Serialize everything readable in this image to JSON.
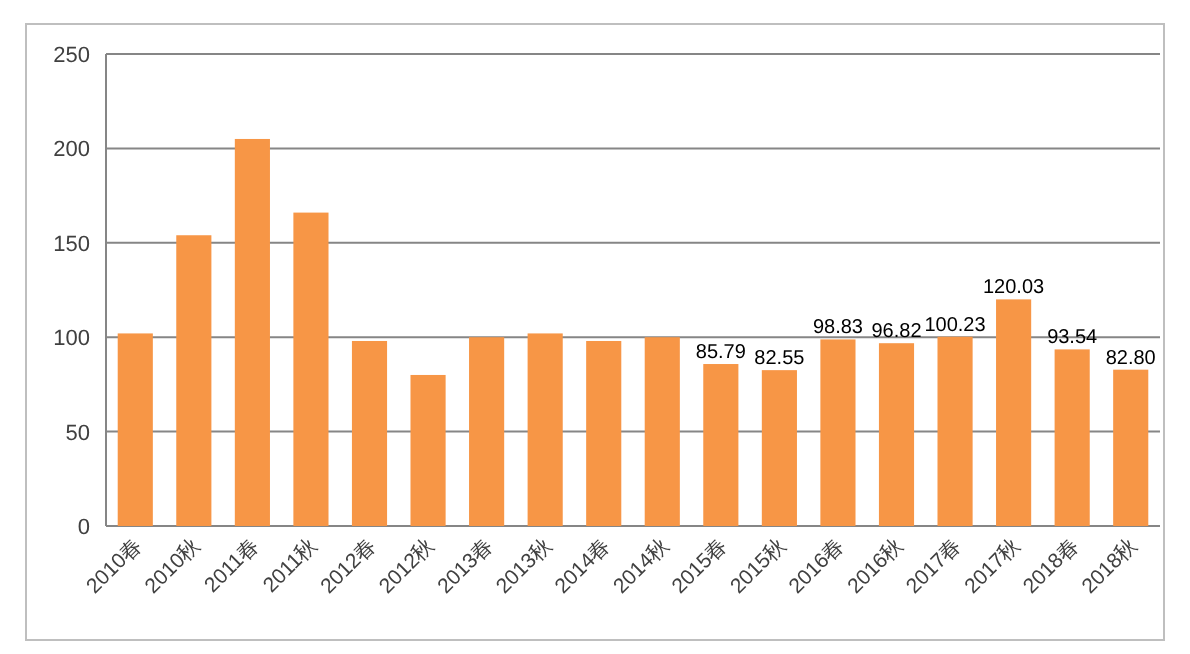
{
  "chart_data": {
    "type": "bar",
    "categories": [
      "2010春",
      "2010秋",
      "2011春",
      "2011秋",
      "2012春",
      "2012秋",
      "2013春",
      "2013秋",
      "2014春",
      "2014秋",
      "2015春",
      "2015秋",
      "2016春",
      "2016秋",
      "2017春",
      "2017秋",
      "2018春",
      "2018秋"
    ],
    "values": [
      102,
      154,
      205,
      166,
      98,
      80,
      100,
      102,
      98,
      100,
      85.79,
      82.55,
      98.83,
      96.82,
      100.23,
      120.03,
      93.54,
      82.8
    ],
    "value_labels": [
      null,
      null,
      null,
      null,
      null,
      null,
      null,
      null,
      null,
      null,
      "85.79",
      "82.55",
      "98.83",
      "96.82",
      "100.23",
      "120.03",
      "93.54",
      "82.80"
    ],
    "color": "#f79646",
    "ylim": [
      0,
      250
    ],
    "yticks": [
      0,
      50,
      100,
      150,
      200,
      250
    ],
    "grid": "y"
  }
}
